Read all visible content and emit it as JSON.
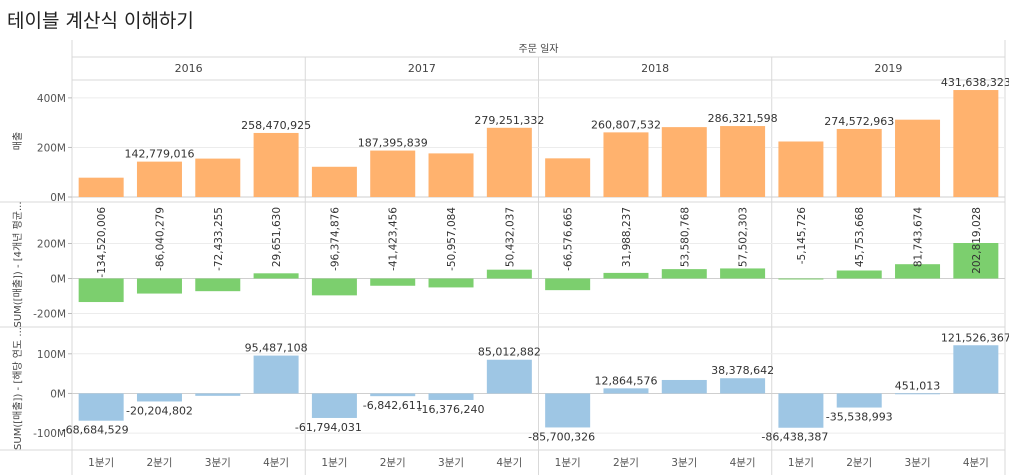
{
  "page": {
    "title": "테이블 계산식 이해하기"
  },
  "chart_data": {
    "type": "bar",
    "header": "주문 일자",
    "years": [
      "2016",
      "2017",
      "2018",
      "2019"
    ],
    "quarters": [
      "1분기",
      "2분기",
      "3분기",
      "4분기"
    ],
    "panels": [
      {
        "name": "매출",
        "ylabel": "매출",
        "ylim": [
          -8000000,
          460000000
        ],
        "ticks": [
          {
            "v": 0,
            "label": "0M"
          },
          {
            "v": 200000000,
            "label": "200M"
          },
          {
            "v": 400000000,
            "label": "400M"
          }
        ],
        "color": "#ffb26e",
        "label_rotation": "horizontal",
        "values": [
          [
            78000000,
            142779016,
            155000000,
            258470925
          ],
          [
            122000000,
            187395839,
            176000000,
            279251332
          ],
          [
            156000000,
            260807532,
            282000000,
            286321598
          ],
          [
            224000000,
            274572963,
            312000000,
            431638323
          ]
        ],
        "labels": [
          [
            "",
            "142,779,016",
            "",
            "258,470,925"
          ],
          [
            "",
            "187,395,839",
            "",
            "279,251,332"
          ],
          [
            "",
            "260,807,532",
            "",
            "286,321,598"
          ],
          [
            "",
            "274,572,963",
            "",
            "431,638,323"
          ]
        ]
      },
      {
        "name": "4개년 평균 대비",
        "ylabel": "SUM([매출]) - [4개년 평균...",
        "ylim": [
          -260000000,
          420000000
        ],
        "ticks": [
          {
            "v": -200000000,
            "label": "-200M"
          },
          {
            "v": 0,
            "label": "0M"
          },
          {
            "v": 200000000,
            "label": "200M"
          }
        ],
        "color": "#7ccf6e",
        "label_rotation": "vertical",
        "values": [
          [
            -134520006,
            -86040279,
            -72433255,
            29651630
          ],
          [
            -96374876,
            -41423456,
            -50957084,
            50432037
          ],
          [
            -66576665,
            31988237,
            53580768,
            57502303
          ],
          [
            -5145726,
            45753668,
            81743674,
            202819028
          ]
        ],
        "labels": [
          [
            "-134,520,006",
            "-86,040,279",
            "-72,433,255",
            "29,651,630"
          ],
          [
            "-96,374,876",
            "-41,423,456",
            "-50,957,084",
            "50,432,037"
          ],
          [
            "-66,576,665",
            "31,988,237",
            "53,580,768",
            "57,502,303"
          ],
          [
            "-5,145,726",
            "45,753,668",
            "81,743,674",
            "202,819,028"
          ]
        ]
      },
      {
        "name": "해당 연도 평균 대비",
        "ylabel": "SUM([매출]) - [해당 연도 ...",
        "ylim": [
          -135000000,
          160000000
        ],
        "ticks": [
          {
            "v": -100000000,
            "label": "-100M"
          },
          {
            "v": 0,
            "label": "0M"
          },
          {
            "v": 100000000,
            "label": "100M"
          }
        ],
        "color": "#9ec6e4",
        "label_rotation": "horizontal",
        "values": [
          [
            -68684529,
            -20204802,
            -6000000,
            95487108
          ],
          [
            -61794031,
            -6842611,
            -16376240,
            85012882
          ],
          [
            -85700326,
            12864576,
            34000000,
            38378642
          ],
          [
            -86438387,
            -35538993,
            451013,
            121526367
          ]
        ],
        "labels": [
          [
            "-68,684,529",
            "-20,204,802",
            "",
            "95,487,108"
          ],
          [
            "-61,794,031",
            "-6,842,611",
            "-16,376,240",
            "85,012,882"
          ],
          [
            "-85,700,326",
            "12,864,576",
            "",
            "38,378,642"
          ],
          [
            "-86,438,387",
            "-35,538,993",
            "451,013",
            "121,526,367"
          ]
        ]
      }
    ]
  }
}
